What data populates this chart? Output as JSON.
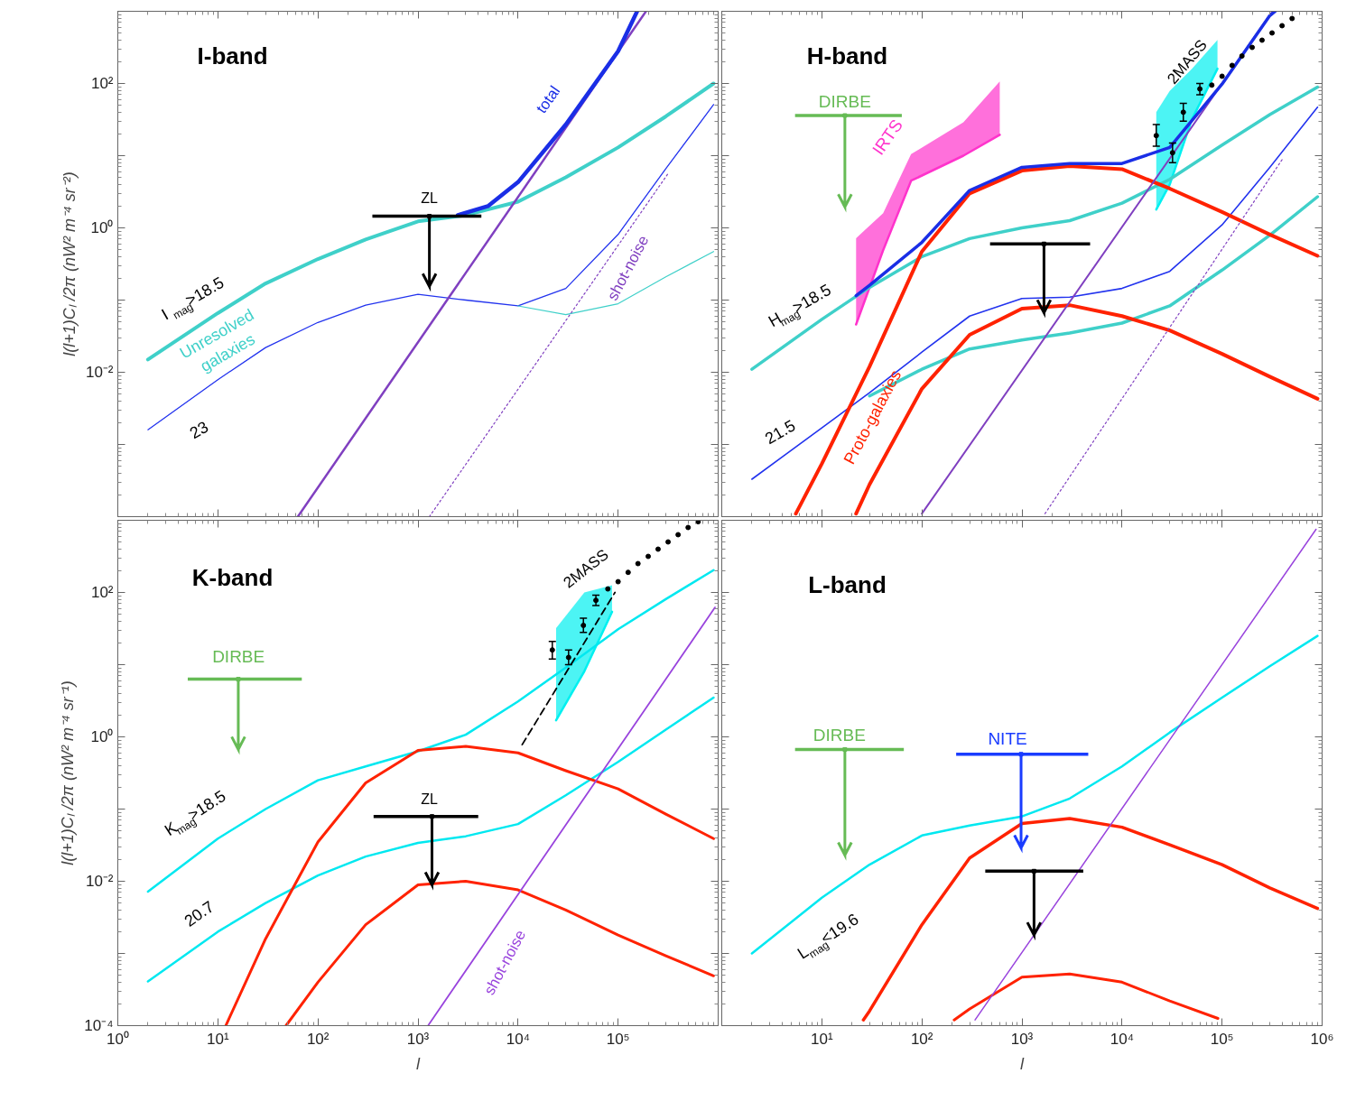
{
  "chart_data": [
    {
      "type": "line",
      "log": "xy",
      "tick_labels": "y",
      "ylabel": "l(l+1)Cₗ /2π (nW² m⁻⁴ sr⁻²)",
      "xlim": [
        1,
        1000000
      ],
      "ylim": [
        0.0001,
        1000
      ],
      "xticks": [
        1,
        10,
        100,
        1000,
        10000,
        100000,
        1000000
      ],
      "yticks": [
        {
          "value": 0.0001,
          "label": null
        },
        {
          "value": 0.001,
          "label": null
        },
        {
          "value": 0.01,
          "label": "10⁻²"
        },
        {
          "value": 0.1,
          "label": null
        },
        {
          "value": 1,
          "label": "10⁰"
        },
        {
          "value": 10,
          "label": null
        },
        {
          "value": 100,
          "label": "10²"
        },
        {
          "value": 1000,
          "label": null
        }
      ],
      "annotations": [
        "I-band",
        "total",
        "ZL",
        "I$_{mag}$>18.5",
        "Unresolved\ngalaxies",
        "23",
        "shot-noise"
      ],
      "series": [
        {
          "color": "#3fd0c9",
          "x": [
            2,
            10,
            30,
            100,
            300,
            1000,
            3000,
            10000,
            30000,
            100000,
            300000,
            900000
          ],
          "values": [
            0.015,
            0.066,
            0.17,
            0.37,
            0.69,
            1.23,
            1.5,
            2.3,
            5.0,
            13,
            35,
            100
          ]
        },
        {
          "color": "#2233ee",
          "x": [
            2,
            10,
            30,
            100,
            300,
            1000,
            3000,
            10000,
            30000,
            100000,
            300000,
            900000
          ],
          "values": [
            0.0016,
            0.0079,
            0.022,
            0.049,
            0.085,
            0.12,
            0.1,
            0.083,
            0.145,
            0.81,
            6.6,
            51
          ]
        },
        {
          "color": "#3fd0c9",
          "x": [
            10000,
            30000,
            100000,
            300000,
            900000
          ],
          "values": [
            0.083,
            0.063,
            0.089,
            0.21,
            0.47
          ]
        },
        {
          "color": "#8040c0",
          "x": [
            63,
            190000
          ],
          "values": [
            0.0001,
            1000
          ]
        },
        {
          "color": "#8040c0",
          "line_style": "dotted",
          "x": [
            1300,
            320000
          ],
          "values": [
            0.0001,
            5.8
          ]
        },
        {
          "color": "#1a2ee6",
          "x": [
            2500,
            5000,
            10000,
            30000,
            100000,
            155000
          ],
          "values": [
            1.5,
            2.0,
            4.3,
            27,
            280,
            1000
          ]
        },
        {
          "type": "scatter",
          "marker": "square",
          "color": "#000000",
          "x": [
            1300
          ],
          "values": [
            1.45
          ],
          "xerrors": [
            [
              350,
              4300
            ]
          ],
          "errors": [
            [
              0.155,
              1.45
            ]
          ]
        }
      ]
    },
    {
      "type": "line",
      "log": "xy",
      "tick_labels": false,
      "xlim": [
        1,
        1000000
      ],
      "ylim": [
        0.0001,
        1000
      ],
      "xticks": [
        1,
        10,
        100,
        1000,
        10000,
        100000,
        1000000
      ],
      "yticks": [
        0.0001,
        0.001,
        0.01,
        0.1,
        1,
        10,
        100,
        1000
      ],
      "annotations": [
        "H-band",
        "DIRBE",
        "IRTS",
        {
          "text": "2MASS",
          "x": 60000,
          "y": 84
        },
        "H$_{mag}$>18.5",
        "21.5",
        "Proto-galaxies"
      ],
      "series": [
        {
          "color": "#ff33cc",
          "x": [
            22,
            41,
            78,
            260,
            600
          ],
          "values": [
            0.046,
            0.49,
            4.5,
            10,
            19.5
          ],
          "lower": [
            0.046,
            0.49,
            4.5,
            10,
            19.5
          ],
          "upper": [
            0.72,
            1.6,
            10.5,
            29,
            107
          ]
        },
        {
          "color": "#00f0f0",
          "x": [
            22000,
            30000,
            50000,
            90000
          ],
          "values": [
            1.8,
            4,
            32,
            160
          ],
          "lower": [
            1.8,
            4,
            32,
            160
          ],
          "upper": [
            40,
            79,
            160,
            400
          ]
        },
        {
          "color": "#3fd0c9",
          "x": [
            2,
            10,
            30,
            100,
            300,
            1000,
            3000,
            10000,
            30000,
            100000,
            300000,
            900000
          ],
          "values": [
            0.011,
            0.054,
            0.15,
            0.4,
            0.71,
            1.0,
            1.26,
            2.2,
            4.7,
            14,
            37,
            89
          ]
        },
        {
          "color": "#3fd0c9",
          "x": [
            30,
            100,
            300,
            1000,
            3000,
            10000,
            30000,
            100000,
            300000,
            900000
          ],
          "values": [
            0.0047,
            0.011,
            0.021,
            0.028,
            0.035,
            0.048,
            0.083,
            0.26,
            0.79,
            2.7
          ]
        },
        {
          "color": "#2233ee",
          "x": [
            2,
            10,
            30,
            100,
            300,
            1000,
            3000,
            10000,
            30000,
            100000,
            300000,
            900000
          ],
          "values": [
            0.00033,
            0.0017,
            0.0052,
            0.019,
            0.06,
            0.105,
            0.11,
            0.145,
            0.25,
            1.1,
            6.9,
            47
          ]
        },
        {
          "color": "#ff2200",
          "x": [
            5.5,
            10,
            30,
            100,
            300,
            1000,
            3000,
            10000,
            30000,
            100000,
            300000,
            900000
          ],
          "values": [
            0.00011,
            0.00054,
            0.012,
            0.47,
            3.0,
            6.2,
            7.2,
            6.5,
            3.5,
            1.66,
            0.81,
            0.41
          ]
        },
        {
          "color": "#ff2200",
          "x": [
            22,
            30,
            100,
            300,
            1000,
            3000,
            10000,
            30000,
            100000,
            300000,
            900000
          ],
          "values": [
            0.00011,
            0.00028,
            0.0059,
            0.033,
            0.076,
            0.085,
            0.06,
            0.038,
            0.018,
            0.0087,
            0.0043
          ]
        },
        {
          "color": "#8040c0",
          "x": [
            100,
            320000
          ],
          "values": [
            0.00011,
            1000
          ]
        },
        {
          "color": "#8040c0",
          "line_style": "dotted",
          "x": [
            1700,
            400000
          ],
          "values": [
            0.00011,
            8.9
          ]
        },
        {
          "color": "#1a2ee6",
          "x": [
            22,
            30,
            100,
            300,
            1000,
            3000,
            10000,
            30000,
            100000,
            300000,
            340000
          ],
          "values": [
            0.115,
            0.16,
            0.63,
            3.3,
            6.9,
            7.8,
            7.8,
            13,
            98,
            870,
            1000
          ]
        },
        {
          "type": "scatter",
          "marker": "circle",
          "color": "#000000",
          "x": [
            22000,
            32000,
            41000,
            60000,
            79000,
            100000,
            126000,
            158000,
            200000,
            251000,
            316000,
            398000,
            501000
          ],
          "values": [
            19,
            11,
            40,
            84,
            95,
            126,
            178,
            240,
            316,
            398,
            501,
            631,
            794
          ],
          "errors": [
            [
              13.5,
              27
            ],
            [
              8,
              15
            ],
            [
              30,
              53
            ],
            [
              70,
              100
            ],
            null,
            null,
            null,
            null,
            null,
            null,
            null,
            null,
            null
          ]
        },
        {
          "type": "scatter",
          "marker": "square",
          "color": "#66bb55",
          "x": [
            17
          ],
          "values": [
            36
          ],
          "xerrors": [
            [
              5.4,
              63
            ]
          ],
          "errors": [
            [
              1.95,
              36
            ]
          ]
        },
        {
          "type": "scatter",
          "marker": "square",
          "color": "#000000",
          "x": [
            1660
          ],
          "values": [
            0.6
          ],
          "xerrors": [
            [
              480,
              4800
            ]
          ],
          "errors": [
            [
              0.067,
              0.6
            ]
          ]
        }
      ]
    },
    {
      "type": "line",
      "log": "xy",
      "xlabel": "l",
      "ylabel": "l(l+1)Cₗ /2π (nW² m⁻⁴ sr⁻¹)",
      "xlim": [
        1,
        1000000
      ],
      "ylim": [
        0.0001,
        1000
      ],
      "xticks": [
        {
          "value": 1,
          "label": "10⁰"
        },
        {
          "value": 10,
          "label": "10¹"
        },
        {
          "value": 100,
          "label": "10²"
        },
        {
          "value": 1000,
          "label": "10³"
        },
        {
          "value": 10000,
          "label": "10⁴"
        },
        {
          "value": 100000,
          "label": "10⁵"
        },
        {
          "value": 1000000,
          "label": null
        }
      ],
      "yticks": [
        {
          "value": 0.0001,
          "label": "10⁻⁴"
        },
        {
          "value": 0.001,
          "label": null
        },
        {
          "value": 0.01,
          "label": "10⁻²"
        },
        {
          "value": 0.1,
          "label": null
        },
        {
          "value": 1,
          "label": "10⁰"
        },
        {
          "value": 10,
          "label": null
        },
        {
          "value": 100,
          "label": "10²"
        },
        {
          "value": 1000,
          "label": null
        }
      ],
      "annotations": [
        "K-band",
        "DIRBE",
        {
          "text": "2MASS",
          "x": 60000,
          "y": 78
        },
        "K$_{mag}$>18.5",
        "20.7",
        "ZL",
        "shot-noise"
      ],
      "series": [
        {
          "color": "#00f0f0",
          "x": [
            24000,
            46000,
            87000
          ],
          "values": [
            1.7,
            8.1,
            54
          ],
          "lower": [
            1.7,
            8.1,
            54
          ],
          "upper": [
            32,
            100,
            126
          ]
        },
        {
          "color": "#00e8f0",
          "x": [
            2,
            10,
            30,
            100,
            300,
            1000,
            3000,
            10000,
            30000,
            100000,
            300000,
            900000
          ],
          "values": [
            0.0072,
            0.039,
            0.1,
            0.25,
            0.39,
            0.63,
            1.07,
            3.1,
            9.1,
            31,
            81,
            204
          ]
        },
        {
          "color": "#00e8f0",
          "x": [
            2,
            10,
            30,
            100,
            300,
            1000,
            3000,
            10000,
            30000,
            100000,
            300000,
            900000
          ],
          "values": [
            0.00041,
            0.002,
            0.005,
            0.012,
            0.022,
            0.034,
            0.042,
            0.062,
            0.155,
            0.45,
            1.26,
            3.5
          ]
        },
        {
          "color": "#ff2200",
          "x": [
            12,
            30,
            100,
            300,
            1000,
            3000,
            10000,
            30000,
            100000,
            300000,
            900000
          ],
          "values": [
            0.0001,
            0.0016,
            0.035,
            0.23,
            0.65,
            0.74,
            0.6,
            0.34,
            0.19,
            0.085,
            0.039
          ]
        },
        {
          "color": "#ff2200",
          "x": [
            48,
            100,
            300,
            1000,
            3000,
            10000,
            30000,
            100000,
            300000,
            900000
          ],
          "values": [
            0.0001,
            0.0004,
            0.0025,
            0.0089,
            0.01,
            0.0076,
            0.004,
            0.0018,
            0.00093,
            0.00049
          ]
        },
        {
          "color": "#9944dd",
          "x": [
            1260,
            930000
          ],
          "values": [
            0.0001,
            62
          ]
        },
        {
          "color": "#000000",
          "line_style": "dashed",
          "x": [
            11000,
            93000
          ],
          "values": [
            0.78,
            100
          ]
        },
        {
          "type": "scatter",
          "marker": "circle",
          "color": "#000000",
          "x": [
            22000,
            32000,
            45000,
            60000,
            79000,
            100000,
            126000,
            158000,
            200000,
            251000,
            316000,
            398000,
            501000,
            631000
          ],
          "values": [
            16,
            12.6,
            35,
            78,
            112,
            141,
            190,
            251,
            316,
            398,
            501,
            631,
            794,
            955
          ],
          "errors": [
            [
              12,
              21
            ],
            [
              10,
              16
            ],
            [
              28,
              44
            ],
            [
              66,
              92
            ],
            null,
            null,
            null,
            null,
            null,
            null,
            null,
            null,
            null,
            null
          ]
        },
        {
          "type": "scatter",
          "marker": "square",
          "color": "#66bb55",
          "x": [
            16
          ],
          "values": [
            6.3
          ],
          "xerrors": [
            [
              5,
              69
            ]
          ],
          "errors": [
            [
              0.67,
              6.3
            ]
          ]
        },
        {
          "type": "scatter",
          "marker": "square",
          "color": "#000000",
          "x": [
            1380
          ],
          "values": [
            0.079
          ],
          "xerrors": [
            [
              360,
              4000
            ]
          ],
          "errors": [
            [
              0.0089,
              0.079
            ]
          ]
        }
      ]
    },
    {
      "type": "line",
      "log": "xy",
      "tick_labels": "x",
      "xlabel": "l",
      "xlim": [
        1,
        1000000
      ],
      "ylim": [
        0.0001,
        1000
      ],
      "xticks": [
        {
          "value": 1,
          "label": null
        },
        {
          "value": 10,
          "label": "10¹"
        },
        {
          "value": 100,
          "label": "10²"
        },
        {
          "value": 1000,
          "label": "10³"
        },
        {
          "value": 10000,
          "label": "10⁴"
        },
        {
          "value": 100000,
          "label": "10⁵"
        },
        {
          "value": 1000000,
          "label": "10⁶"
        }
      ],
      "yticks": [
        0.0001,
        0.001,
        0.01,
        0.1,
        1,
        10,
        100,
        1000
      ],
      "annotations": [
        "L-band",
        "DIRBE",
        "NITE",
        "L$_{mag}$<19.6"
      ],
      "series": [
        {
          "color": "#00e8f0",
          "x": [
            2,
            10,
            30,
            100,
            300,
            1000,
            3000,
            10000,
            30000,
            100000,
            300000,
            900000
          ],
          "values": [
            0.001,
            0.0059,
            0.017,
            0.043,
            0.059,
            0.079,
            0.14,
            0.39,
            1.15,
            3.5,
            9.5,
            25
          ]
        },
        {
          "color": "#ff2200",
          "x": [
            26,
            30,
            100,
            300,
            1000,
            3000,
            10000,
            30000,
            100000,
            300000,
            900000
          ],
          "values": [
            0.00012,
            0.00016,
            0.0025,
            0.021,
            0.063,
            0.074,
            0.056,
            0.032,
            0.017,
            0.0081,
            0.0042
          ]
        },
        {
          "color": "#ff2200",
          "x": [
            210,
            300,
            1000,
            3000,
            10000,
            30000,
            91000
          ],
          "values": [
            0.00012,
            0.00017,
            0.00047,
            0.00052,
            0.0004,
            0.00022,
            0.000126
          ]
        },
        {
          "color": "#9944dd",
          "x": [
            340,
            870000
          ],
          "values": [
            0.00012,
            750
          ]
        },
        {
          "type": "scatter",
          "marker": "square",
          "color": "#66bb55",
          "x": [
            17
          ],
          "values": [
            0.67
          ],
          "xerrors": [
            [
              5.4,
              66
            ]
          ],
          "errors": [
            [
              0.023,
              0.67
            ]
          ]
        },
        {
          "type": "scatter",
          "marker": "square",
          "color": "#1a3cff",
          "x": [
            980
          ],
          "values": [
            0.575
          ],
          "xerrors": [
            [
              220,
              4600
            ]
          ],
          "errors": [
            [
              0.029,
              0.575
            ]
          ]
        },
        {
          "type": "scatter",
          "marker": "square",
          "color": "#000000",
          "x": [
            1320
          ],
          "values": [
            0.0138
          ],
          "xerrors": [
            [
              430,
              4100
            ]
          ],
          "errors": [
            [
              0.0018,
              0.0138
            ]
          ]
        }
      ]
    }
  ]
}
